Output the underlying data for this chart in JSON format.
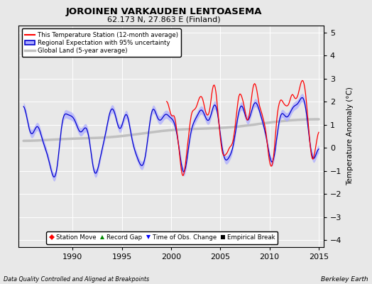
{
  "title": "JOROINEN VARKAUDEN LENTOASEMA",
  "subtitle": "62.173 N, 27.863 E (Finland)",
  "ylabel": "Temperature Anomaly (°C)",
  "footer_left": "Data Quality Controlled and Aligned at Breakpoints",
  "footer_right": "Berkeley Earth",
  "xlim": [
    1984.5,
    2015.5
  ],
  "ylim": [
    -4.3,
    5.3
  ],
  "yticks": [
    -4,
    -3,
    -2,
    -1,
    0,
    1,
    2,
    3,
    4,
    5
  ],
  "xticks": [
    1990,
    1995,
    2000,
    2005,
    2010,
    2015
  ],
  "color_station": "#FF0000",
  "color_regional": "#0000CC",
  "color_uncertainty": "#AAAAFF",
  "color_global": "#C0C0C0",
  "color_bg": "#E8E8E8",
  "legend_items": [
    {
      "label": "This Temperature Station (12-month average)",
      "color": "#FF0000",
      "lw": 1.5
    },
    {
      "label": "Regional Expectation with 95% uncertainty",
      "color": "#0000CC",
      "lw": 1.5
    },
    {
      "label": "Global Land (5-year average)",
      "color": "#C0C0C0",
      "lw": 2.5
    }
  ],
  "marker_legend": [
    {
      "label": "Station Move",
      "marker": "D",
      "color": "#FF0000"
    },
    {
      "label": "Record Gap",
      "marker": "^",
      "color": "#008800"
    },
    {
      "label": "Time of Obs. Change",
      "marker": "v",
      "color": "#0000FF"
    },
    {
      "label": "Empirical Break",
      "marker": "s",
      "color": "#000000"
    }
  ]
}
